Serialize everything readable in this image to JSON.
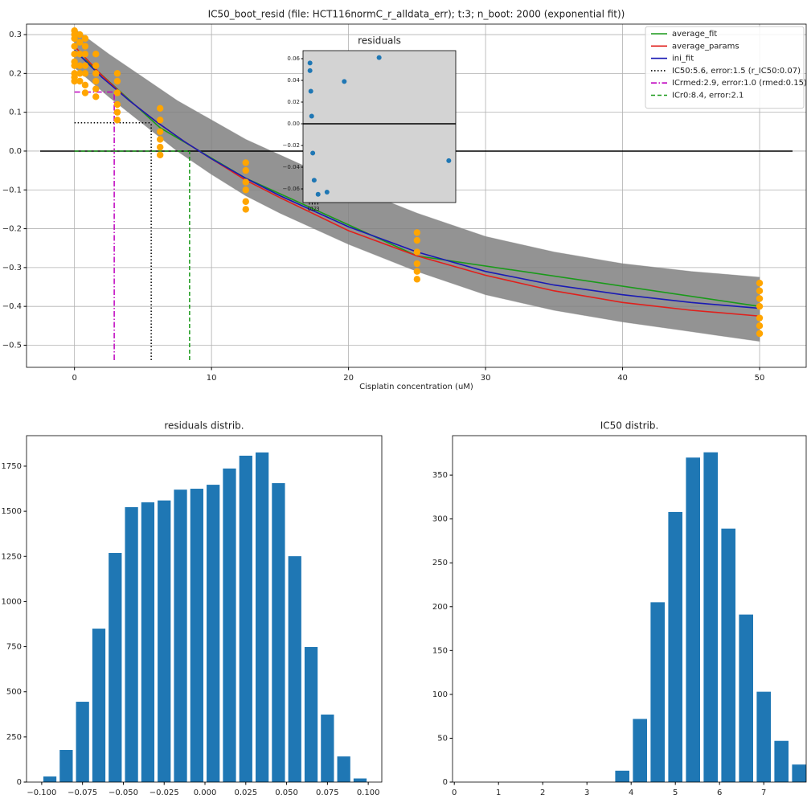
{
  "chart_data": [
    {
      "type": "line",
      "title": "IC50_boot_resid (file: HCT116normC_r_alldata_err); t:3; n_boot: 2000 (exponential fit))",
      "xlabel": "Cisplatin concentration (uM)",
      "xlim": [
        -3.5,
        53.4
      ],
      "ylim": [
        -0.557,
        0.327
      ],
      "xticks": [
        0,
        10,
        20,
        30,
        40,
        50
      ],
      "yticks": [
        {
          "value": -0.5,
          "label": "−0.5"
        },
        {
          "value": -0.4,
          "label": "−0.4"
        },
        {
          "value": -0.3,
          "label": "−0.3"
        },
        {
          "value": -0.2,
          "label": "−0.2"
        },
        {
          "value": -0.1,
          "label": "−0.1"
        },
        {
          "value": 0,
          "label": "0.0"
        },
        0.1,
        0.2,
        0.3
      ],
      "grid": true,
      "legend": "upper right",
      "band": {
        "color": "#808080",
        "x": [
          0,
          2.5,
          5,
          7.5,
          10,
          12.5,
          15,
          20,
          25,
          30,
          35,
          40,
          45,
          50
        ],
        "upper": [
          0.315,
          0.25,
          0.19,
          0.13,
          0.08,
          0.03,
          -0.01,
          -0.09,
          -0.16,
          -0.22,
          -0.26,
          -0.29,
          -0.31,
          -0.325
        ],
        "lower": [
          0.215,
          0.14,
          0.07,
          0.0,
          -0.06,
          -0.115,
          -0.16,
          -0.24,
          -0.31,
          -0.37,
          -0.41,
          -0.44,
          -0.465,
          -0.49
        ]
      },
      "hline": {
        "value": 0,
        "color": "#000000"
      },
      "series": [
        {
          "name": "average_fit",
          "color": "#1a9a1a",
          "x": [
            0,
            0.39,
            0.78,
            1.56,
            3.125,
            6.25,
            12.5,
            25,
            50
          ],
          "values": [
            0.255,
            0.245,
            0.235,
            0.21,
            0.16,
            0.06,
            -0.07,
            -0.27,
            -0.4
          ]
        },
        {
          "name": "average_params",
          "color": "#e0201c",
          "x": [
            0,
            2,
            4,
            6,
            8,
            10,
            12.5,
            15,
            20,
            25,
            30,
            35,
            40,
            45,
            50
          ],
          "values": [
            0.27,
            0.195,
            0.13,
            0.075,
            0.025,
            -0.02,
            -0.075,
            -0.12,
            -0.205,
            -0.27,
            -0.32,
            -0.36,
            -0.39,
            -0.41,
            -0.425
          ]
        },
        {
          "name": "ini_fit",
          "color": "#1a1ab4",
          "x": [
            0,
            2,
            4,
            6,
            8,
            10,
            12.5,
            15,
            20,
            25,
            30,
            35,
            40,
            45,
            50
          ],
          "values": [
            0.26,
            0.19,
            0.13,
            0.075,
            0.025,
            -0.02,
            -0.07,
            -0.115,
            -0.195,
            -0.26,
            -0.31,
            -0.345,
            -0.37,
            -0.39,
            -0.405
          ]
        }
      ],
      "markers": [
        {
          "name": "IC50:5.6, error:1.5 (r_IC50:0.07)",
          "color": "#000000",
          "linestyle": "dotted",
          "x": 5.6,
          "y": 0.073
        },
        {
          "name": "ICrmed:2.9, error:1.0 (rmed:0.15)",
          "color": "#bf00bf",
          "linestyle": "dashdot",
          "x": 2.9,
          "y": 0.152
        },
        {
          "name": "ICr0:8.4, error:2.1",
          "color": "#1a9a1a",
          "linestyle": "dashed",
          "x": 8.4,
          "y": 0
        }
      ],
      "points": {
        "color": "#ffa500",
        "x": [
          0,
          0,
          0,
          0,
          0,
          0,
          0,
          0,
          0,
          0,
          0.39,
          0.39,
          0.39,
          0.39,
          0.39,
          0.39,
          0.78,
          0.78,
          0.78,
          0.78,
          0.78,
          0.78,
          0.78,
          1.56,
          1.56,
          1.56,
          1.56,
          1.56,
          1.56,
          3.125,
          3.125,
          3.125,
          3.125,
          3.125,
          3.125,
          6.25,
          6.25,
          6.25,
          6.25,
          6.25,
          6.25,
          12.5,
          12.5,
          12.5,
          12.5,
          12.5,
          12.5,
          25,
          25,
          25,
          25,
          25,
          25,
          50,
          50,
          50,
          50,
          50,
          50,
          50
        ],
        "y": [
          0.31,
          0.3,
          0.29,
          0.27,
          0.25,
          0.23,
          0.22,
          0.2,
          0.19,
          0.18,
          0.3,
          0.28,
          0.25,
          0.22,
          0.2,
          0.18,
          0.29,
          0.27,
          0.25,
          0.22,
          0.2,
          0.17,
          0.15,
          0.25,
          0.22,
          0.2,
          0.18,
          0.16,
          0.14,
          0.2,
          0.18,
          0.15,
          0.12,
          0.1,
          0.08,
          0.11,
          0.08,
          0.05,
          0.03,
          0.01,
          -0.01,
          -0.03,
          -0.05,
          -0.08,
          -0.1,
          -0.13,
          -0.15,
          -0.21,
          -0.23,
          -0.26,
          -0.29,
          -0.31,
          -0.33,
          -0.34,
          -0.36,
          -0.38,
          -0.4,
          -0.43,
          -0.45,
          -0.47
        ]
      }
    },
    {
      "type": "scatter",
      "title": "residuals",
      "color": "#1f77b4",
      "background": "#d3d3d3",
      "xlim": [
        -2.3,
        52.5
      ],
      "ylim": [
        -0.0726,
        0.0674
      ],
      "xticks": [
        0,
        1,
        2,
        3
      ],
      "yticks": [
        {
          "value": -0.06,
          "label": "−0.06"
        },
        {
          "value": -0.04,
          "label": "−0.04"
        },
        {
          "value": -0.02,
          "label": "−0.02"
        },
        {
          "value": 0,
          "label": "0.00"
        },
        0.02,
        0.04,
        0.06
      ],
      "hline": {
        "value": 0,
        "color": "#000000"
      },
      "x": [
        0.2,
        0.2,
        0.5,
        0.8,
        1.2,
        1.7,
        3.1,
        6.3,
        12.5,
        25,
        50
      ],
      "y": [
        0.056,
        0.049,
        0.03,
        0.007,
        -0.027,
        -0.052,
        -0.065,
        -0.063,
        0.039,
        0.061,
        -0.034
      ]
    },
    {
      "type": "histogram",
      "title": "residuals distrib.",
      "color": "#1f77b4",
      "xlim": [
        -0.1093,
        0.1083
      ],
      "ylim": [
        0,
        1919
      ],
      "xticks": [
        {
          "value": -0.1,
          "label": "−0.100"
        },
        {
          "value": -0.075,
          "label": "−0.075"
        },
        {
          "value": -0.05,
          "label": "−0.050"
        },
        {
          "value": -0.025,
          "label": "−0.025"
        },
        {
          "value": 0,
          "label": "0.000"
        },
        0.025,
        {
          "value": 0.05,
          "label": "0.050"
        },
        0.075,
        {
          "value": 0.1,
          "label": "0.100"
        }
      ],
      "yticks": [
        0,
        250,
        500,
        750,
        1000,
        1250,
        1500,
        1750
      ],
      "bins": [
        -0.1,
        -0.09,
        -0.08,
        -0.07,
        -0.06,
        -0.05,
        -0.04,
        -0.03,
        -0.02,
        -0.01,
        0,
        0.01,
        0.02,
        0.03,
        0.04,
        0.05,
        0.06,
        0.07,
        0.08,
        0.09,
        0.1
      ],
      "values": [
        31,
        178,
        445,
        850,
        1269,
        1523,
        1550,
        1560,
        1620,
        1625,
        1647,
        1737,
        1808,
        1826,
        1656,
        1251,
        748,
        374,
        142,
        20
      ]
    },
    {
      "type": "histogram",
      "title": "IC50 distrib.",
      "color": "#1f77b4",
      "xlim": [
        -0.04,
        7.96
      ],
      "ylim": [
        0,
        395
      ],
      "xticks": [
        0,
        1,
        2,
        3,
        4,
        5,
        6,
        7
      ],
      "yticks": [
        0,
        50,
        100,
        150,
        200,
        250,
        300,
        350
      ],
      "bins": [
        3.6,
        4,
        4.4,
        4.8,
        5.2,
        5.6,
        6,
        6.4,
        6.8,
        7.2,
        7.6,
        8
      ],
      "values": [
        13,
        72,
        205,
        308,
        370,
        376,
        289,
        191,
        103,
        47,
        20
      ]
    }
  ]
}
